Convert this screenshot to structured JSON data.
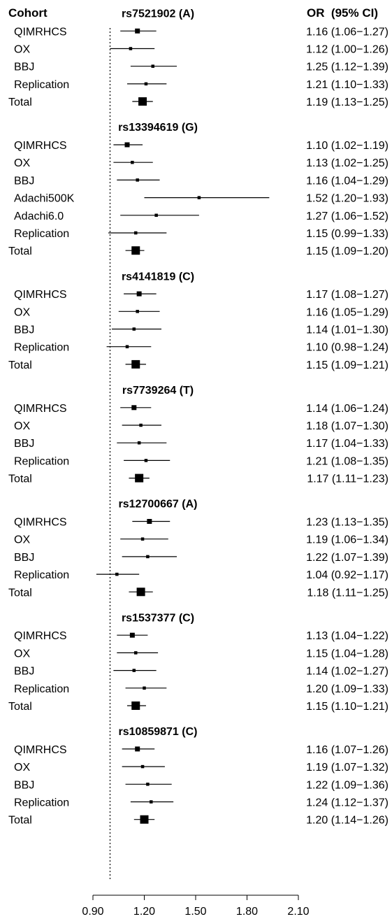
{
  "chart_data": {
    "type": "forest",
    "header": {
      "cohort": "Cohort",
      "or": "OR  (95% CI)"
    },
    "xlim": [
      0.9,
      2.1
    ],
    "reference_line": 1.0,
    "x_ticks": [
      0.9,
      1.2,
      1.5,
      1.8,
      2.1
    ],
    "x_tick_labels": [
      "0.90",
      "1.20",
      "1.50",
      "1.80",
      "2.10"
    ],
    "groups": [
      {
        "snp": "rs7521902 (A)",
        "rows": [
          {
            "cohort": "QIMRHCS",
            "or": 1.16,
            "lo": 1.06,
            "hi": 1.27,
            "text": "1.16 (1.06−1.27)"
          },
          {
            "cohort": "OX",
            "or": 1.12,
            "lo": 1.0,
            "hi": 1.26,
            "text": "1.12 (1.00−1.26)"
          },
          {
            "cohort": "BBJ",
            "or": 1.25,
            "lo": 1.12,
            "hi": 1.39,
            "text": "1.25 (1.12−1.39)"
          },
          {
            "cohort": "Replication",
            "or": 1.21,
            "lo": 1.1,
            "hi": 1.33,
            "text": "1.21 (1.10−1.33)"
          },
          {
            "cohort": "Total",
            "or": 1.19,
            "lo": 1.13,
            "hi": 1.25,
            "text": "1.19 (1.13−1.25)",
            "total": true
          }
        ]
      },
      {
        "snp": "rs13394619 (G)",
        "rows": [
          {
            "cohort": "QIMRHCS",
            "or": 1.1,
            "lo": 1.02,
            "hi": 1.19,
            "text": "1.10 (1.02−1.19)"
          },
          {
            "cohort": "OX",
            "or": 1.13,
            "lo": 1.02,
            "hi": 1.25,
            "text": "1.13 (1.02−1.25)"
          },
          {
            "cohort": "BBJ",
            "or": 1.16,
            "lo": 1.04,
            "hi": 1.29,
            "text": "1.16 (1.04−1.29)"
          },
          {
            "cohort": "Adachi500K",
            "or": 1.52,
            "lo": 1.2,
            "hi": 1.93,
            "text": "1.52 (1.20−1.93)"
          },
          {
            "cohort": "Adachi6.0",
            "or": 1.27,
            "lo": 1.06,
            "hi": 1.52,
            "text": "1.27 (1.06−1.52)"
          },
          {
            "cohort": "Replication",
            "or": 1.15,
            "lo": 0.99,
            "hi": 1.33,
            "text": "1.15 (0.99−1.33)"
          },
          {
            "cohort": "Total",
            "or": 1.15,
            "lo": 1.09,
            "hi": 1.2,
            "text": "1.15 (1.09−1.20)",
            "total": true
          }
        ]
      },
      {
        "snp": "rs4141819 (C)",
        "rows": [
          {
            "cohort": "QIMRHCS",
            "or": 1.17,
            "lo": 1.08,
            "hi": 1.27,
            "text": "1.17 (1.08−1.27)"
          },
          {
            "cohort": "OX",
            "or": 1.16,
            "lo": 1.05,
            "hi": 1.29,
            "text": "1.16 (1.05−1.29)"
          },
          {
            "cohort": "BBJ",
            "or": 1.14,
            "lo": 1.01,
            "hi": 1.3,
            "text": "1.14 (1.01−1.30)"
          },
          {
            "cohort": "Replication",
            "or": 1.1,
            "lo": 0.98,
            "hi": 1.24,
            "text": "1.10 (0.98−1.24)"
          },
          {
            "cohort": "Total",
            "or": 1.15,
            "lo": 1.09,
            "hi": 1.21,
            "text": "1.15 (1.09−1.21)",
            "total": true
          }
        ]
      },
      {
        "snp": "rs7739264 (T)",
        "rows": [
          {
            "cohort": "QIMRHCS",
            "or": 1.14,
            "lo": 1.06,
            "hi": 1.24,
            "text": "1.14 (1.06−1.24)"
          },
          {
            "cohort": "OX",
            "or": 1.18,
            "lo": 1.07,
            "hi": 1.3,
            "text": "1.18 (1.07−1.30)"
          },
          {
            "cohort": "BBJ",
            "or": 1.17,
            "lo": 1.04,
            "hi": 1.33,
            "text": "1.17 (1.04−1.33)"
          },
          {
            "cohort": "Replication",
            "or": 1.21,
            "lo": 1.08,
            "hi": 1.35,
            "text": "1.21 (1.08−1.35)"
          },
          {
            "cohort": "Total",
            "or": 1.17,
            "lo": 1.11,
            "hi": 1.23,
            "text": "1.17 (1.11−1.23)",
            "total": true
          }
        ]
      },
      {
        "snp": "rs12700667 (A)",
        "rows": [
          {
            "cohort": "QIMRHCS",
            "or": 1.23,
            "lo": 1.13,
            "hi": 1.35,
            "text": "1.23 (1.13−1.35)"
          },
          {
            "cohort": "OX",
            "or": 1.19,
            "lo": 1.06,
            "hi": 1.34,
            "text": "1.19 (1.06−1.34)"
          },
          {
            "cohort": "BBJ",
            "or": 1.22,
            "lo": 1.07,
            "hi": 1.39,
            "text": "1.22 (1.07−1.39)"
          },
          {
            "cohort": "Replication",
            "or": 1.04,
            "lo": 0.92,
            "hi": 1.17,
            "text": "1.04 (0.92−1.17)"
          },
          {
            "cohort": "Total",
            "or": 1.18,
            "lo": 1.11,
            "hi": 1.25,
            "text": "1.18 (1.11−1.25)",
            "total": true
          }
        ]
      },
      {
        "snp": "rs1537377 (C)",
        "rows": [
          {
            "cohort": "QIMRHCS",
            "or": 1.13,
            "lo": 1.04,
            "hi": 1.22,
            "text": "1.13 (1.04−1.22)"
          },
          {
            "cohort": "OX",
            "or": 1.15,
            "lo": 1.04,
            "hi": 1.28,
            "text": "1.15 (1.04−1.28)"
          },
          {
            "cohort": "BBJ",
            "or": 1.14,
            "lo": 1.02,
            "hi": 1.27,
            "text": "1.14 (1.02−1.27)"
          },
          {
            "cohort": "Replication",
            "or": 1.2,
            "lo": 1.09,
            "hi": 1.33,
            "text": "1.20 (1.09−1.33)"
          },
          {
            "cohort": "Total",
            "or": 1.15,
            "lo": 1.1,
            "hi": 1.21,
            "text": "1.15 (1.10−1.21)",
            "total": true
          }
        ]
      },
      {
        "snp": "rs10859871 (C)",
        "rows": [
          {
            "cohort": "QIMRHCS",
            "or": 1.16,
            "lo": 1.07,
            "hi": 1.26,
            "text": "1.16 (1.07−1.26)"
          },
          {
            "cohort": "OX",
            "or": 1.19,
            "lo": 1.07,
            "hi": 1.32,
            "text": "1.19 (1.07−1.32)"
          },
          {
            "cohort": "BBJ",
            "or": 1.22,
            "lo": 1.09,
            "hi": 1.36,
            "text": "1.22 (1.09−1.36)"
          },
          {
            "cohort": "Replication",
            "or": 1.24,
            "lo": 1.12,
            "hi": 1.37,
            "text": "1.24 (1.12−1.37)"
          },
          {
            "cohort": "Total",
            "or": 1.2,
            "lo": 1.14,
            "hi": 1.26,
            "text": "1.20 (1.14−1.26)",
            "total": true
          }
        ]
      }
    ]
  }
}
